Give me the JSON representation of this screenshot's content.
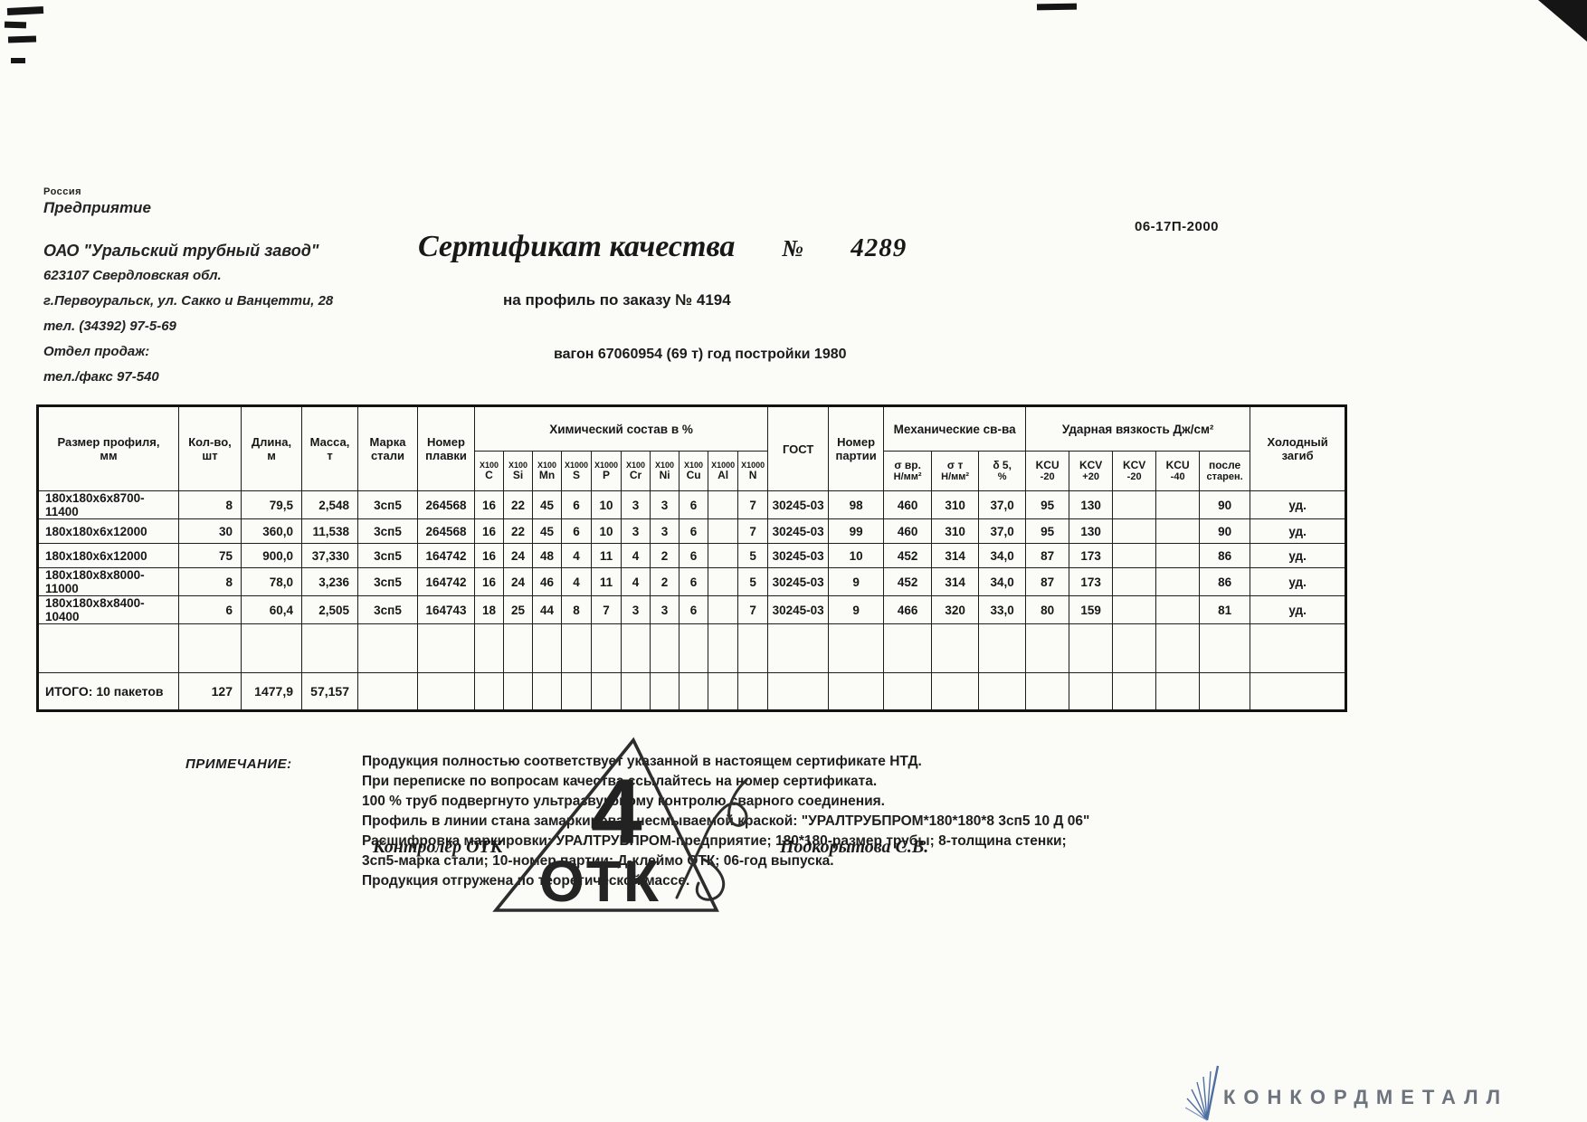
{
  "meta": {
    "doc_code": "06-17П-2000"
  },
  "company": {
    "country": "Россия",
    "label": "Предприятие",
    "name": "ОАО \"Уральский трубный завод\"",
    "address1": "623107 Свердловская обл.",
    "address2": "г.Первоуральск, ул. Сакко и Ванцетти, 28",
    "phone": "тел. (34392) 97-5-69",
    "sales_label": "Отдел продаж:",
    "sales_phone": "тел./факс 97-540"
  },
  "title": {
    "main": "Сертификат качества",
    "number_sign": "№",
    "number": "4289",
    "subtitle": "на профиль по заказу № 4194",
    "wagon": "вагон 67060954 (69 т) год постройки 1980"
  },
  "table": {
    "cols": {
      "size": "Размер профиля,\nмм",
      "qty": "Кол-во,\nшт",
      "length": "Длина,\nм",
      "mass": "Масса,\nт",
      "grade": "Марка\nстали",
      "heat": "Номер\nплавки",
      "gost": "ГОСТ",
      "party": "Номер\nпартии",
      "bend": "Холодный\nзагиб"
    },
    "chem": {
      "title": "Химический состав  в %",
      "cols": [
        {
          "mult": "Х100",
          "el": "C"
        },
        {
          "mult": "Х100",
          "el": "Si"
        },
        {
          "mult": "Х100",
          "el": "Mn"
        },
        {
          "mult": "Х1000",
          "el": "S"
        },
        {
          "mult": "Х1000",
          "el": "P"
        },
        {
          "mult": "Х100",
          "el": "Cr"
        },
        {
          "mult": "Х100",
          "el": "Ni"
        },
        {
          "mult": "Х100",
          "el": "Cu"
        },
        {
          "mult": "Х1000",
          "el": "Al"
        },
        {
          "mult": "Х1000",
          "el": "N"
        }
      ]
    },
    "mech": {
      "title": "Механические св-ва",
      "cols": [
        {
          "l1": "σ вр.",
          "l2": "Н/мм²"
        },
        {
          "l1": "σ т",
          "l2": "Н/мм²"
        },
        {
          "l1": "δ 5,",
          "l2": "%"
        }
      ]
    },
    "impact": {
      "title": "Ударная вязкость Дж/см²",
      "cols": [
        {
          "l1": "KCU",
          "l2": "-20"
        },
        {
          "l1": "KCV",
          "l2": "+20"
        },
        {
          "l1": "KCV",
          "l2": "-20"
        },
        {
          "l1": "KCU",
          "l2": "-40"
        },
        {
          "l1": "после",
          "l2": "старен."
        }
      ]
    },
    "col_classes": [
      "c-left",
      "c-right",
      "c-right",
      "c-right",
      "c-center",
      "c-center",
      "c-center",
      "c-center",
      "c-center",
      "c-center",
      "c-center",
      "c-center",
      "c-center",
      "c-center",
      "c-center",
      "c-center",
      "c-center",
      "c-center",
      "c-center",
      "c-center",
      "c-center",
      "c-center",
      "c-center",
      "c-center",
      "c-center",
      "c-center",
      "c-center"
    ],
    "rows": [
      {
        "name": "table-row",
        "cls": "data",
        "cells": [
          "180х180х6х8700-11400",
          "8",
          "79,5",
          "2,548",
          "3сп5",
          "264568",
          "16",
          "22",
          "45",
          "6",
          "10",
          "3",
          "3",
          "6",
          "",
          "7",
          "30245-03",
          "98",
          "460",
          "310",
          "37,0",
          "95",
          "130",
          "",
          "",
          "90",
          "уд."
        ]
      },
      {
        "name": "table-row",
        "cls": "data",
        "cells": [
          "180х180х6х12000",
          "30",
          "360,0",
          "11,538",
          "3сп5",
          "264568",
          "16",
          "22",
          "45",
          "6",
          "10",
          "3",
          "3",
          "6",
          "",
          "7",
          "30245-03",
          "99",
          "460",
          "310",
          "37,0",
          "95",
          "130",
          "",
          "",
          "90",
          "уд."
        ]
      },
      {
        "name": "table-row",
        "cls": "data",
        "cells": [
          "180х180х6х12000",
          "75",
          "900,0",
          "37,330",
          "3сп5",
          "164742",
          "16",
          "24",
          "48",
          "4",
          "11",
          "4",
          "2",
          "6",
          "",
          "5",
          "30245-03",
          "10",
          "452",
          "314",
          "34,0",
          "87",
          "173",
          "",
          "",
          "86",
          "уд."
        ]
      },
      {
        "name": "table-row",
        "cls": "data",
        "cells": [
          "180х180х8х8000-11000",
          "8",
          "78,0",
          "3,236",
          "3сп5",
          "164742",
          "16",
          "24",
          "46",
          "4",
          "11",
          "4",
          "2",
          "6",
          "",
          "5",
          "30245-03",
          "9",
          "452",
          "314",
          "34,0",
          "87",
          "173",
          "",
          "",
          "86",
          "уд."
        ]
      },
      {
        "name": "table-row",
        "cls": "data",
        "cells": [
          "180х180х8х8400-10400",
          "6",
          "60,4",
          "2,505",
          "3сп5",
          "164743",
          "18",
          "25",
          "44",
          "8",
          "7",
          "3",
          "3",
          "6",
          "",
          "7",
          "30245-03",
          "9",
          "466",
          "320",
          "33,0",
          "80",
          "159",
          "",
          "",
          "81",
          "уд."
        ]
      },
      {
        "name": "spacer-row",
        "cls": "empty",
        "cells": [
          "",
          "",
          "",
          "",
          "",
          "",
          "",
          "",
          "",
          "",
          "",
          "",
          "",
          "",
          "",
          "",
          "",
          "",
          "",
          "",
          "",
          "",
          "",
          "",
          "",
          "",
          ""
        ]
      },
      {
        "name": "total-row",
        "cls": "total",
        "cells": [
          "ИТОГО: 10 пакетов",
          "127",
          "1477,9",
          "57,157",
          "",
          "",
          "",
          "",
          "",
          "",
          "",
          "",
          "",
          "",
          "",
          "",
          "",
          "",
          "",
          "",
          "",
          "",
          "",
          "",
          "",
          "",
          ""
        ]
      }
    ]
  },
  "notes": {
    "label": "ПРИМЕЧАНИЕ:",
    "lines": [
      "Продукция полностью соответствует указанной в настоящем сертификате НТД.",
      "При переписке по вопросам качества ссылайтесь на номер сертификата.",
      "100 % труб подвергнуто ультразвуковому контролю сварного соединения.",
      "Профиль в линии стана замаркирован несмываемой краской: \"УРАЛТРУБПРОМ*180*180*8 3сп5 10 Д 06\"",
      "Расшифровка маркировки: УРАЛТРУБПРОМ-предприятие; 180*180-размер трубы; 8-толщина стенки;",
      "3сп5-марка стали; 10-номер партии; Д-клеймо ОТК; 06-год выпуска.",
      "Продукция отгружена по теоретической массе."
    ]
  },
  "signature": {
    "left": "Контролёр ОТК",
    "right": "Подкорытова С.В."
  },
  "stamp": {
    "number": "4",
    "text": "ОТК",
    "color": "#2d2d2d"
  },
  "logo": {
    "text": "КОНКОРДМЕТАЛЛ",
    "icon": "blue-fan-peak-icon",
    "accent": "#4f6fa3",
    "text_color": "#6d747e"
  }
}
